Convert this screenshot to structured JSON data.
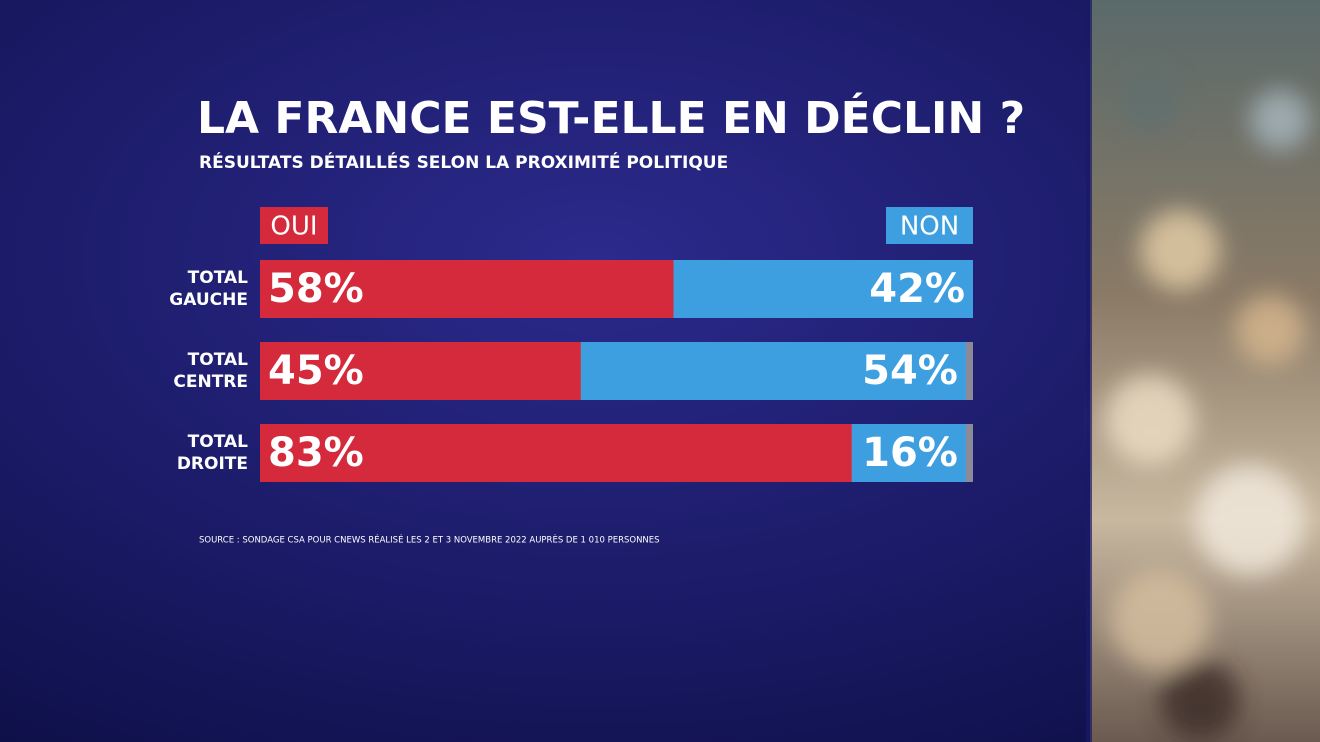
{
  "chart_data": {
    "type": "stacked-bar",
    "title": "LA FRANCE EST-ELLE EN DÉCLIN ?",
    "subtitle": "RÉSULTATS DÉTAILLÉS SELON LA PROXIMITÉ POLITIQUE",
    "source": "SOURCE : SONDAGE CSA POUR CNEWS RÉALISÉ LES 2 ET 3 NOVEMBRE 2022 AUPRÈS DE 1 010 PERSONNES",
    "categories": [
      "TOTAL GAUCHE",
      "TOTAL CENTRE",
      "TOTAL DROITE"
    ],
    "xlim": [
      0,
      100
    ],
    "series": [
      {
        "name": "OUI",
        "color": "#d42a3c",
        "values": [
          58,
          45,
          83
        ],
        "value_labels": [
          "58%",
          "45%",
          "83%"
        ]
      },
      {
        "name": "NON",
        "color": "#3d9fe0",
        "values": [
          42,
          54,
          16
        ],
        "value_labels": [
          "42%",
          "54%",
          "16%"
        ]
      }
    ]
  }
}
